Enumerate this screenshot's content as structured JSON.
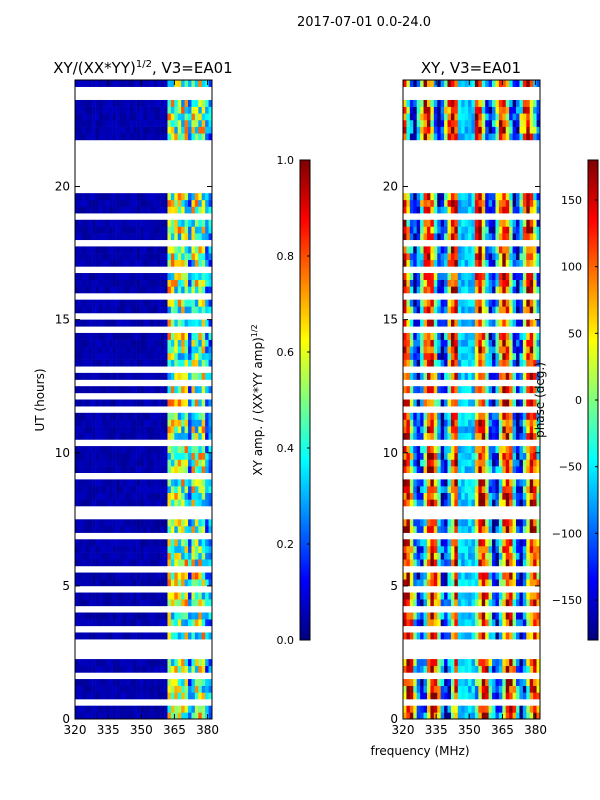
{
  "figure": {
    "suptitle": "2017-07-01 0.0-24.0",
    "shared_xlabel": "frequency (MHz)"
  },
  "chart_data": [
    {
      "type": "heatmap",
      "title": "XY/(XX*YY)^1/2, V3=EA01",
      "title_main": "XY/(XX*YY)",
      "title_exp": "1/2",
      "title_tail": ", V3=EA01",
      "xlabel": "frequency (MHz)",
      "ylabel": "UT (hours)",
      "xlim": [
        320,
        382
      ],
      "ylim": [
        0,
        24
      ],
      "xticks": [
        320,
        335,
        350,
        365,
        380
      ],
      "yticks": [
        0,
        5,
        10,
        15,
        20
      ],
      "colormap": "jet",
      "colorbar": {
        "label": "XY amp. / (XX*YY amp)^1/2",
        "label_main": "XY amp. / (XX*YY amp)",
        "label_exp": "1/2",
        "range": [
          0.0,
          1.0
        ],
        "ticks": [
          "0.0",
          "0.2",
          "0.4",
          "0.6",
          "0.8",
          "1.0"
        ]
      },
      "data_gaps_hours": [
        [
          2.4,
          3.0
        ],
        [
          19.8,
          21.7
        ]
      ]
    },
    {
      "type": "heatmap",
      "title": "XY, V3=EA01",
      "xlabel": "frequency (MHz)",
      "ylabel": "",
      "xlim": [
        320,
        382
      ],
      "ylim": [
        0,
        24
      ],
      "xticks": [
        320,
        335,
        350,
        365,
        380
      ],
      "yticks": [
        0,
        5,
        10,
        15,
        20
      ],
      "colormap": "jet",
      "colorbar": {
        "label": "phase (deg.)",
        "range": [
          -180,
          180
        ],
        "ticks": [
          "−150",
          "−100",
          "−50",
          "0",
          "50",
          "100",
          "150"
        ]
      },
      "data_gaps_hours": [
        [
          2.4,
          3.0
        ],
        [
          19.8,
          21.7
        ]
      ]
    }
  ]
}
